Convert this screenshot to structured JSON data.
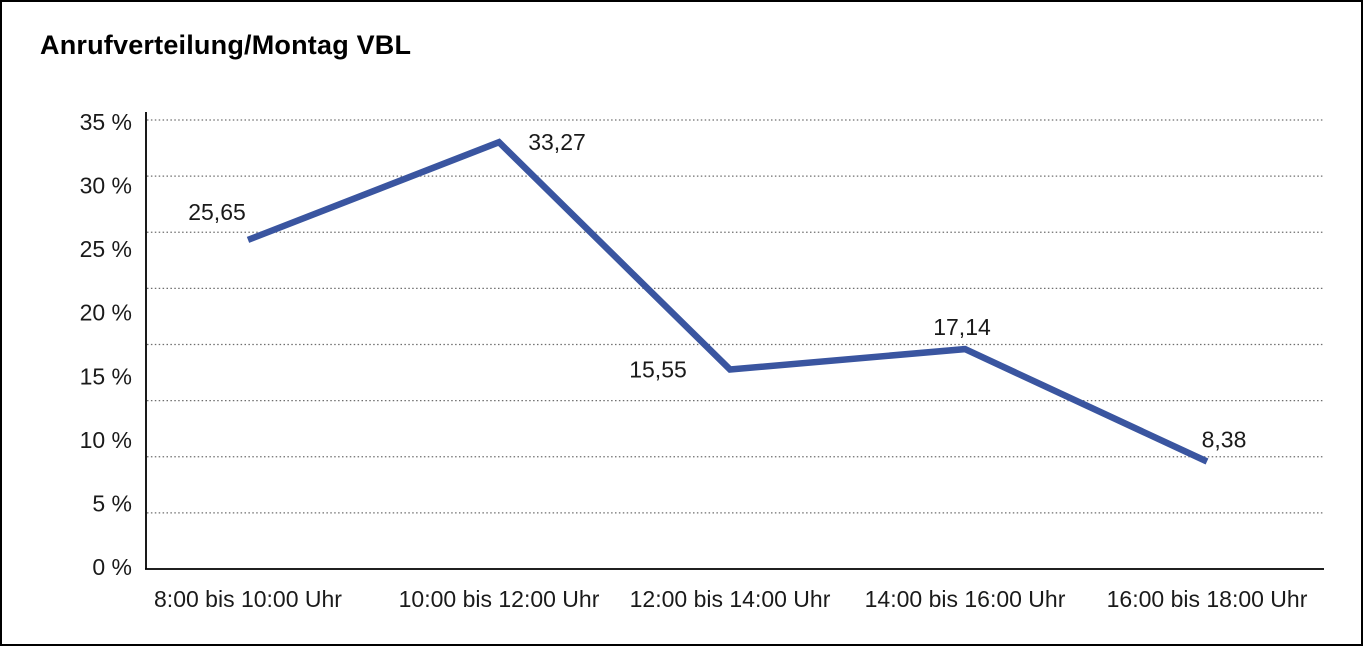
{
  "title": "Anrufverteilung/Montag VBL",
  "chart_data": {
    "type": "line",
    "title": "Anrufverteilung/Montag VBL",
    "categories": [
      "8:00 bis 10:00 Uhr",
      "10:00 bis 12:00 Uhr",
      "12:00 bis 14:00 Uhr",
      "14:00 bis 16:00 Uhr",
      "16:00 bis 18:00 Uhr"
    ],
    "values": [
      25.65,
      33.27,
      15.55,
      17.14,
      8.38
    ],
    "value_labels": [
      "25,65",
      "33,27",
      "15,55",
      "17,14",
      "8,38"
    ],
    "y_tick_labels": [
      "35 %",
      "30 %",
      "25 %",
      "20 %",
      "15 %",
      "10 %",
      "5 %",
      "0 %"
    ],
    "ylim": [
      0,
      35
    ],
    "xlabel": "",
    "ylabel": "",
    "legend": false,
    "grid": "horizontal-dotted",
    "colors": {
      "line": "#3A55A0",
      "grid": "#6E6E6E",
      "axis": "#000000",
      "text": "#1A1A1A",
      "background": "#FFFFFF",
      "border": "#000000"
    }
  }
}
